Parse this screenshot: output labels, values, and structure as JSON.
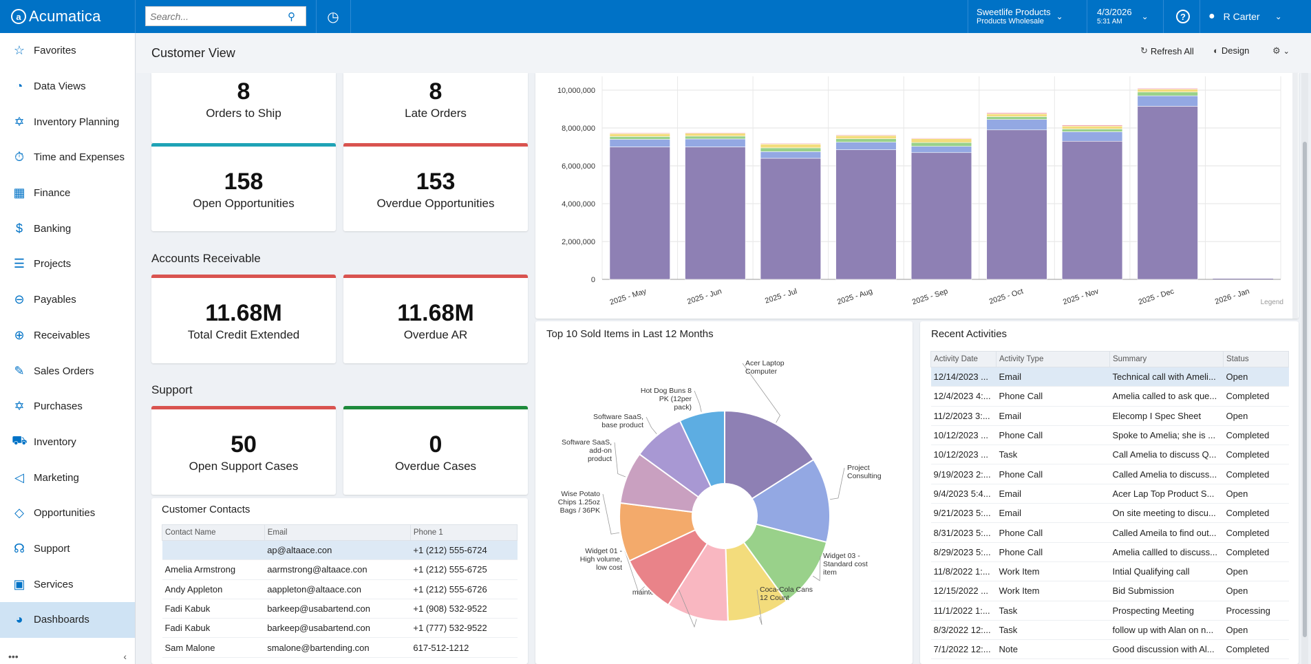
{
  "app": {
    "logo_text": "Acumatica"
  },
  "topbar": {
    "search_placeholder": "Search...",
    "company_line1": "Sweetlife Products",
    "company_line2": "Products Wholesale",
    "date": "4/3/2026",
    "time": "5:31 AM",
    "user": "R Carter"
  },
  "sidebar": {
    "items": [
      {
        "label": "Favorites",
        "icon": "star-icon"
      },
      {
        "label": "Data Views",
        "icon": "pie-icon"
      },
      {
        "label": "Inventory Planning",
        "icon": "cart-icon"
      },
      {
        "label": "Time and Expenses",
        "icon": "stopwatch-icon"
      },
      {
        "label": "Finance",
        "icon": "calculator-icon"
      },
      {
        "label": "Banking",
        "icon": "dollar-icon"
      },
      {
        "label": "Projects",
        "icon": "projects-icon"
      },
      {
        "label": "Payables",
        "icon": "minus-circle-icon"
      },
      {
        "label": "Receivables",
        "icon": "plus-circle-icon"
      },
      {
        "label": "Sales Orders",
        "icon": "edit-icon"
      },
      {
        "label": "Purchases",
        "icon": "cart-icon"
      },
      {
        "label": "Inventory",
        "icon": "truck-icon"
      },
      {
        "label": "Marketing",
        "icon": "megaphone-icon"
      },
      {
        "label": "Opportunities",
        "icon": "tag-icon"
      },
      {
        "label": "Support",
        "icon": "headset-icon"
      },
      {
        "label": "Services",
        "icon": "briefcase-icon"
      },
      {
        "label": "Dashboards",
        "icon": "dashboard-icon"
      }
    ],
    "active": "Dashboards"
  },
  "page": {
    "title": "Customer View",
    "refresh_label": "Refresh All",
    "design_label": "Design"
  },
  "kpis": {
    "orders_to_ship": {
      "value": "8",
      "label": "Orders to Ship"
    },
    "late_orders": {
      "value": "8",
      "label": "Late Orders"
    },
    "open_opps": {
      "value": "158",
      "label": "Open Opportunities"
    },
    "overdue_opps": {
      "value": "153",
      "label": "Overdue Opportunities"
    },
    "ar_title": "Accounts Receivable",
    "total_credit": {
      "value": "11.68M",
      "label": "Total Credit Extended"
    },
    "overdue_ar": {
      "value": "11.68M",
      "label": "Overdue AR"
    },
    "support_title": "Support",
    "open_cases": {
      "value": "50",
      "label": "Open Support Cases"
    },
    "overdue_cases": {
      "value": "0",
      "label": "Overdue Cases"
    }
  },
  "contacts": {
    "title": "Customer Contacts",
    "columns": [
      "Contact Name",
      "Email",
      "Phone 1"
    ],
    "rows": [
      [
        "",
        "ap@altaace.con",
        "+1 (212) 555-6724"
      ],
      [
        "Amelia Armstrong",
        "aarmstrong@altaace.con",
        "+1 (212) 555-6725"
      ],
      [
        "Andy Appleton",
        "aappleton@altaace.con",
        "+1 (212) 555-6726"
      ],
      [
        "Fadi Kabuk",
        "barkeep@usabartend.con",
        "+1 (908) 532-9522"
      ],
      [
        "Fadi Kabuk",
        "barkeep@usabartend.con",
        "+1 (777) 532-9522"
      ],
      [
        "Sam Malone",
        "smalone@bartending.con",
        "617-512-1212"
      ]
    ]
  },
  "activities": {
    "title": "Recent Activities",
    "columns": [
      "Activity Date",
      "Activity Type",
      "Summary",
      "Status"
    ],
    "rows": [
      [
        "12/14/2023 ...",
        "Email",
        "Technical call with Ameli...",
        "Open"
      ],
      [
        "12/4/2023 4:...",
        "Phone Call",
        "Amelia called to ask que...",
        "Completed"
      ],
      [
        "11/2/2023 3:...",
        "Email",
        "Elecomp I Spec Sheet",
        "Open"
      ],
      [
        "10/12/2023 ...",
        "Phone Call",
        "Spoke to Amelia; she is ...",
        "Completed"
      ],
      [
        "10/12/2023 ...",
        "Task",
        "Call Amelia to discuss Q...",
        "Completed"
      ],
      [
        "9/19/2023 2:...",
        "Phone Call",
        "Called Amelia to discuss...",
        "Completed"
      ],
      [
        "9/4/2023 5:4...",
        "Email",
        "Acer Lap Top Product S...",
        "Open"
      ],
      [
        "9/21/2023 5:...",
        "Email",
        "On site meeting to discu...",
        "Completed"
      ],
      [
        "8/31/2023 5:...",
        "Phone Call",
        "Called Ameila to find out...",
        "Completed"
      ],
      [
        "8/29/2023 5:...",
        "Phone Call",
        "Amelia callled to discuss...",
        "Completed"
      ],
      [
        "11/8/2022 1:...",
        "Work Item",
        "Intial Qualifying call",
        "Open"
      ],
      [
        "12/15/2022 ...",
        "Work Item",
        "Bid Submission",
        "Open"
      ],
      [
        "11/1/2022 1:...",
        "Task",
        "Prospecting Meeting",
        "Processing"
      ],
      [
        "8/3/2022 12:...",
        "Task",
        "follow up with Alan on n...",
        "Open"
      ],
      [
        "7/1/2022 12:...",
        "Note",
        "Good discussion with Al...",
        "Completed"
      ]
    ]
  },
  "pie_title": "Top 10 Sold Items in Last 12 Months",
  "legend_label": "Legend",
  "chart_data": [
    {
      "type": "bar",
      "stacked": true,
      "categories": [
        "2025 - May",
        "2025 - Jun",
        "2025 - Jul",
        "2025 - Aug",
        "2025 - Sep",
        "2025 - Oct",
        "2025 - Nov",
        "2025 - Dec",
        "2026 - Jan"
      ],
      "series": [
        {
          "color": "#8e80b4",
          "values": [
            7000000,
            7000000,
            6400000,
            6850000,
            6700000,
            7900000,
            7300000,
            9150000,
            0
          ]
        },
        {
          "color": "#93a8e3",
          "values": [
            400000,
            420000,
            350000,
            400000,
            330000,
            550000,
            500000,
            550000,
            0
          ]
        },
        {
          "color": "#99d18a",
          "values": [
            150000,
            150000,
            200000,
            180000,
            200000,
            150000,
            150000,
            200000,
            0
          ]
        },
        {
          "color": "#f3dc7c",
          "values": [
            150000,
            150000,
            200000,
            170000,
            200000,
            150000,
            150000,
            150000,
            0
          ]
        },
        {
          "color": "#f2a0a8",
          "values": [
            40000,
            40000,
            40000,
            40000,
            40000,
            60000,
            60000,
            50000,
            0
          ]
        }
      ],
      "ylim": [
        0,
        10000000
      ],
      "yticks": [
        "0",
        "2,000,000",
        "4,000,000",
        "6,000,000",
        "8,000,000",
        "10,000,000"
      ],
      "grid": true
    },
    {
      "type": "pie",
      "donut": true,
      "title": "Top 10 Sold Items in Last 12 Months",
      "slices": [
        {
          "label": "Acer Laptop Computer",
          "value": 16,
          "color": "#8e80b4"
        },
        {
          "label": "Project Consulting",
          "value": 13,
          "color": "#93a8e3"
        },
        {
          "label": "Widget 03 - Standard cost item",
          "value": 11,
          "color": "#99d18a"
        },
        {
          "label": "Coca-Cola Cans 12 Count",
          "value": 9.5,
          "color": "#f3dc7c"
        },
        {
          "label": "Software maintenance",
          "value": 9.5,
          "color": "#f9b7c1"
        },
        {
          "label": "Widget 01 - High volume, low cost",
          "value": 9,
          "color": "#e98389"
        },
        {
          "label": "Wise Potato Chips 1.25oz Bags / 36PK",
          "value": 9,
          "color": "#f3aa6b"
        },
        {
          "label": "Software SaaS, add-on product",
          "value": 8,
          "color": "#c9a0c0"
        },
        {
          "label": "Software SaaS, base product",
          "value": 8,
          "color": "#a898d3"
        },
        {
          "label": "Hot Dog Buns 8 PK (12per pack)",
          "value": 7,
          "color": "#5dade2"
        }
      ]
    }
  ]
}
